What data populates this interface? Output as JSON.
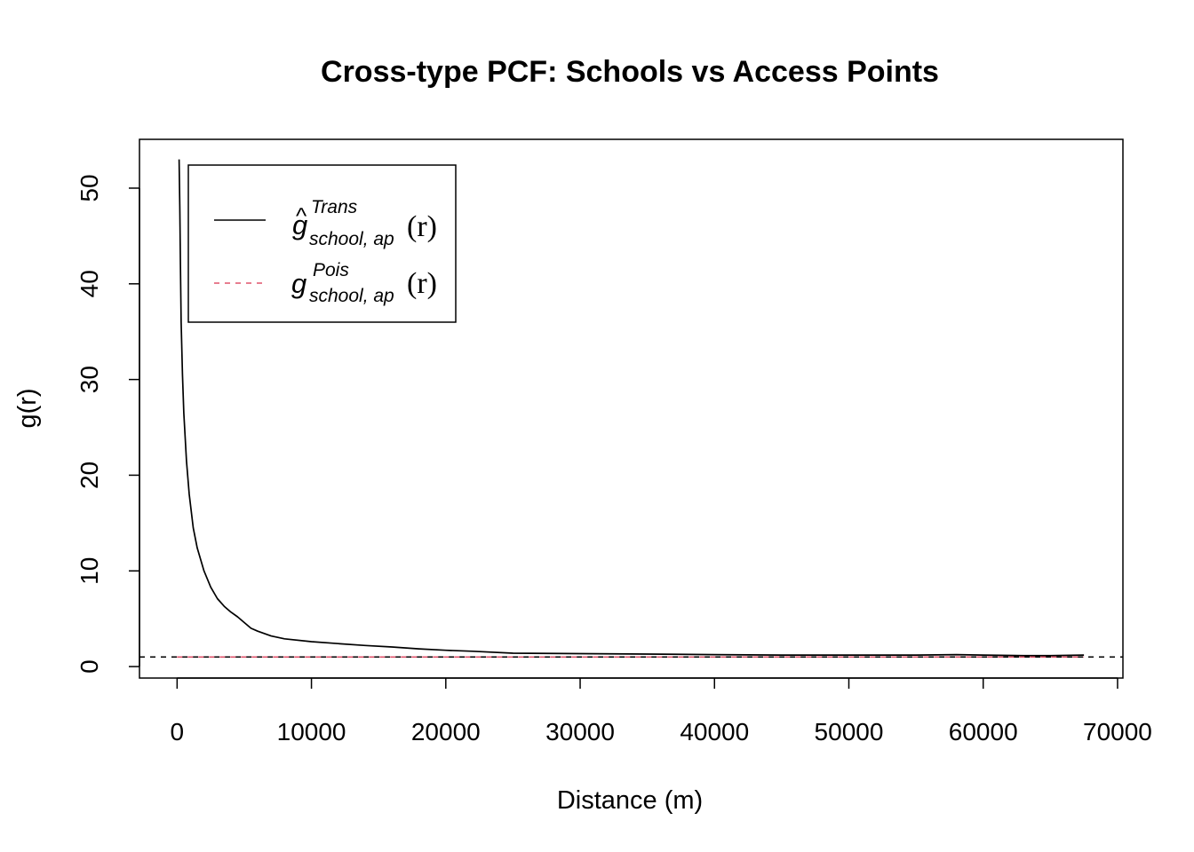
{
  "chart_data": {
    "type": "line",
    "title": "Cross-type PCF: Schools vs Access Points",
    "xlabel": "Distance (m)",
    "ylabel": "g(r)",
    "xlim": [
      -2800,
      70400
    ],
    "ylim": [
      -1.2,
      55.1
    ],
    "x_ticks": [
      "0",
      "10000",
      "20000",
      "30000",
      "40000",
      "50000",
      "60000",
      "70000"
    ],
    "y_ticks": [
      "0",
      "10",
      "20",
      "30",
      "40",
      "50"
    ],
    "reference_line": {
      "y": 1,
      "style": "dashed",
      "color": "#000000"
    },
    "legend": {
      "position": "top-left",
      "entries": [
        {
          "symbol": "g",
          "hat": "^",
          "sup": "Trans",
          "sub": "school, ap",
          "arg": "(r)",
          "color": "#000000",
          "dash": "solid"
        },
        {
          "symbol": "g",
          "hat": "",
          "sup": "Pois",
          "sub": "school, ap",
          "arg": "(r)",
          "color": "#DF536B",
          "dash": "dashed"
        }
      ]
    },
    "series": [
      {
        "color": "#000000",
        "dash": "solid",
        "x": [
          150,
          200,
          250,
          300,
          400,
          500,
          700,
          900,
          1200,
          1500,
          2000,
          2500,
          3000,
          3500,
          4000,
          4500,
          5000,
          5500,
          6000,
          7000,
          8000,
          10000,
          12000,
          14000,
          16000,
          18000,
          20000,
          22000,
          25000,
          30000,
          35000,
          40000,
          45000,
          50000,
          55000,
          58000,
          60000,
          63000,
          65000,
          67500
        ],
        "y": [
          53,
          48,
          42,
          36,
          30.5,
          26.5,
          21.5,
          18,
          14.5,
          12.4,
          10,
          8.3,
          7.1,
          6.3,
          5.7,
          5.2,
          4.6,
          4.0,
          3.7,
          3.2,
          2.9,
          2.6,
          2.4,
          2.2,
          2.05,
          1.85,
          1.7,
          1.6,
          1.4,
          1.35,
          1.3,
          1.25,
          1.2,
          1.2,
          1.2,
          1.25,
          1.2,
          1.15,
          1.15,
          1.2
        ]
      },
      {
        "color": "#DF536B",
        "dash": "dashed",
        "x": [
          0,
          67500
        ],
        "y": [
          1,
          1
        ]
      }
    ]
  }
}
